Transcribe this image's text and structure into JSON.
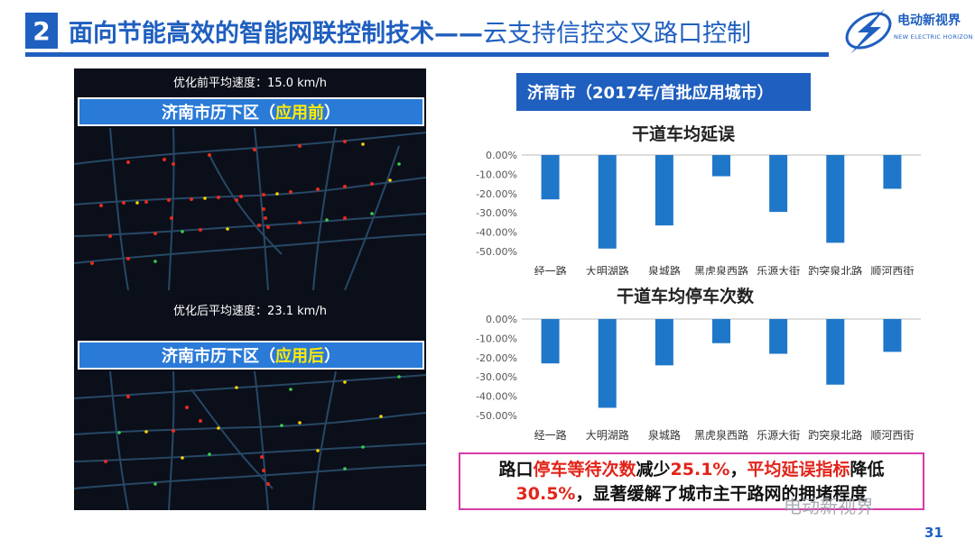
{
  "header": {
    "section_number": "2",
    "title_bold": "面向节能高效的智能网联控制技术——",
    "title_light": "云支持信控交叉路口控制",
    "logo_text": "电动新视界",
    "logo_subtext": "NEW ELECTRIC HORIZON"
  },
  "map": {
    "before_speed": "优化前平均速度：15.0 km/h",
    "before_tag_prefix": "济南市历下区（",
    "before_tag_highlight": "应用前",
    "before_tag_suffix": "）",
    "after_speed": "优化后平均速度：23.1 km/h",
    "after_tag_prefix": "济南市历下区（",
    "after_tag_highlight": "应用后",
    "after_tag_suffix": "）"
  },
  "city_label": "济南市（2017年/首批应用城市）",
  "chart_data": [
    {
      "type": "bar",
      "title": "干道车均延误",
      "categories": [
        "经一路",
        "大明湖路",
        "泉城路",
        "黑虎泉西路",
        "乐源大街",
        "趵突泉北路",
        "顺河西街"
      ],
      "values": [
        -23.0,
        -48.5,
        -36.5,
        -11.0,
        -29.5,
        -45.5,
        -17.5
      ],
      "ylim": [
        -50,
        0
      ],
      "yticks": [
        "0.00%",
        "-10.00%",
        "-20.00%",
        "-30.00%",
        "-40.00%",
        "-50.00%"
      ],
      "color": "#1f77c9"
    },
    {
      "type": "bar",
      "title": "干道车均停车次数",
      "categories": [
        "经一路",
        "大明湖路",
        "泉城路",
        "黑虎泉西路",
        "乐源大街",
        "趵突泉北路",
        "顺河西街"
      ],
      "values": [
        -23.0,
        -46.0,
        -24.0,
        -12.5,
        -18.0,
        -34.0,
        -17.0
      ],
      "ylim": [
        -50,
        0
      ],
      "yticks": [
        "0.00%",
        "-10.00%",
        "-20.00%",
        "-30.00%",
        "-40.00%",
        "-50.00%"
      ],
      "color": "#1f77c9"
    }
  ],
  "note": {
    "p1": "路口",
    "p2": "停车等待次数",
    "p3": "减少",
    "p4": "25.1%",
    "p5": "，",
    "p6": "平均延误指标",
    "p7": "降低",
    "p8": "30.5%",
    "p9": "，显著缓解了城市主干路网的拥堵程度"
  },
  "watermark": "电动新视界",
  "page_number": "31"
}
